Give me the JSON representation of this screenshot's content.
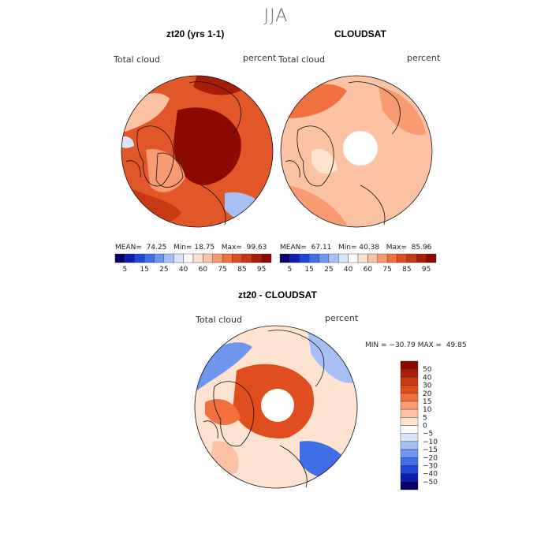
{
  "figure_title": "JJA",
  "palette": [
    "#08006b",
    "#0a1fb0",
    "#1c47d8",
    "#3f6ee6",
    "#6f96ef",
    "#a6c0f5",
    "#d8e6fb",
    "#fbfbfb",
    "#fde3d0",
    "#fbc3a4",
    "#f89a72",
    "#f0703f",
    "#e04e1f",
    "#c83813",
    "#a81d08",
    "#8b0a00"
  ],
  "panels": [
    {
      "id": "model",
      "title": "zt20 (yrs 1-1)",
      "left_label": "Total cloud",
      "right_label": "percent",
      "stats": {
        "mean_label": "MEAN=",
        "mean": "74.25",
        "min_label": "Min=",
        "min": "18.75",
        "max_label": "Max=",
        "max": "99.63"
      }
    },
    {
      "id": "obs",
      "title": "CLOUDSAT",
      "left_label": "Total cloud",
      "right_label": "percent",
      "stats": {
        "mean_label": "MEAN=",
        "mean": "67.11",
        "min_label": "Min=",
        "min": "40.38",
        "max_label": "Max=",
        "max": "85.96"
      }
    },
    {
      "id": "diff",
      "title": "zt20 - CLOUDSAT",
      "left_label": "Total cloud",
      "right_label": "percent",
      "minmax": "MIN = −30.79 MAX =  49.85"
    }
  ],
  "horizontal_colorbar": {
    "ticks": [
      "5",
      "15",
      "25",
      "40",
      "60",
      "75",
      "85",
      "95"
    ]
  },
  "vertical_colorbar": {
    "ticks": [
      "50",
      "40",
      "30",
      "20",
      "15",
      "10",
      "5",
      "0",
      "−5",
      "−10",
      "−15",
      "−20",
      "−30",
      "−40",
      "−50"
    ]
  }
}
